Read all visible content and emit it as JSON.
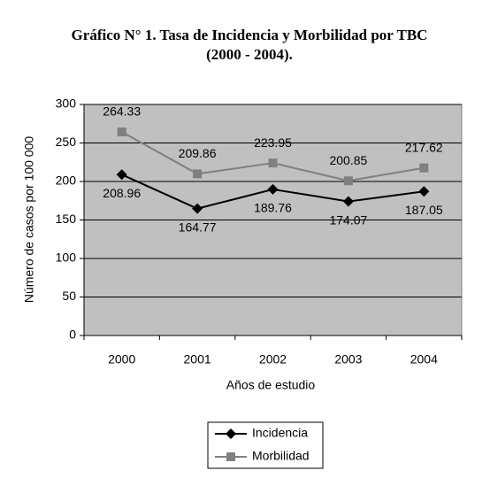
{
  "chart_data": {
    "type": "line",
    "title": [
      "Gráfico N° 1. Tasa de Incidencia y Morbilidad por TBC",
      "(2000 - 2004)."
    ],
    "x_label": "Años de estudio",
    "y_label": "Número de casos por 100 000",
    "categories": [
      "2000",
      "2001",
      "2002",
      "2003",
      "2004"
    ],
    "series": [
      {
        "name": "Incidencia",
        "color": "#000000",
        "marker": "diamond",
        "label_position": "below",
        "values": [
          208.96,
          164.77,
          189.76,
          174.07,
          187.05
        ]
      },
      {
        "name": "Morbilidad",
        "color": "#808080",
        "marker": "square",
        "label_position": "above",
        "values": [
          264.33,
          209.86,
          223.95,
          200.85,
          217.62
        ]
      }
    ],
    "ylim": [
      0,
      300
    ],
    "yticks": [
      0,
      50,
      100,
      150,
      200,
      250,
      300
    ],
    "grid": true,
    "plot_background": "#c0c0c0",
    "legend": "bottom"
  }
}
